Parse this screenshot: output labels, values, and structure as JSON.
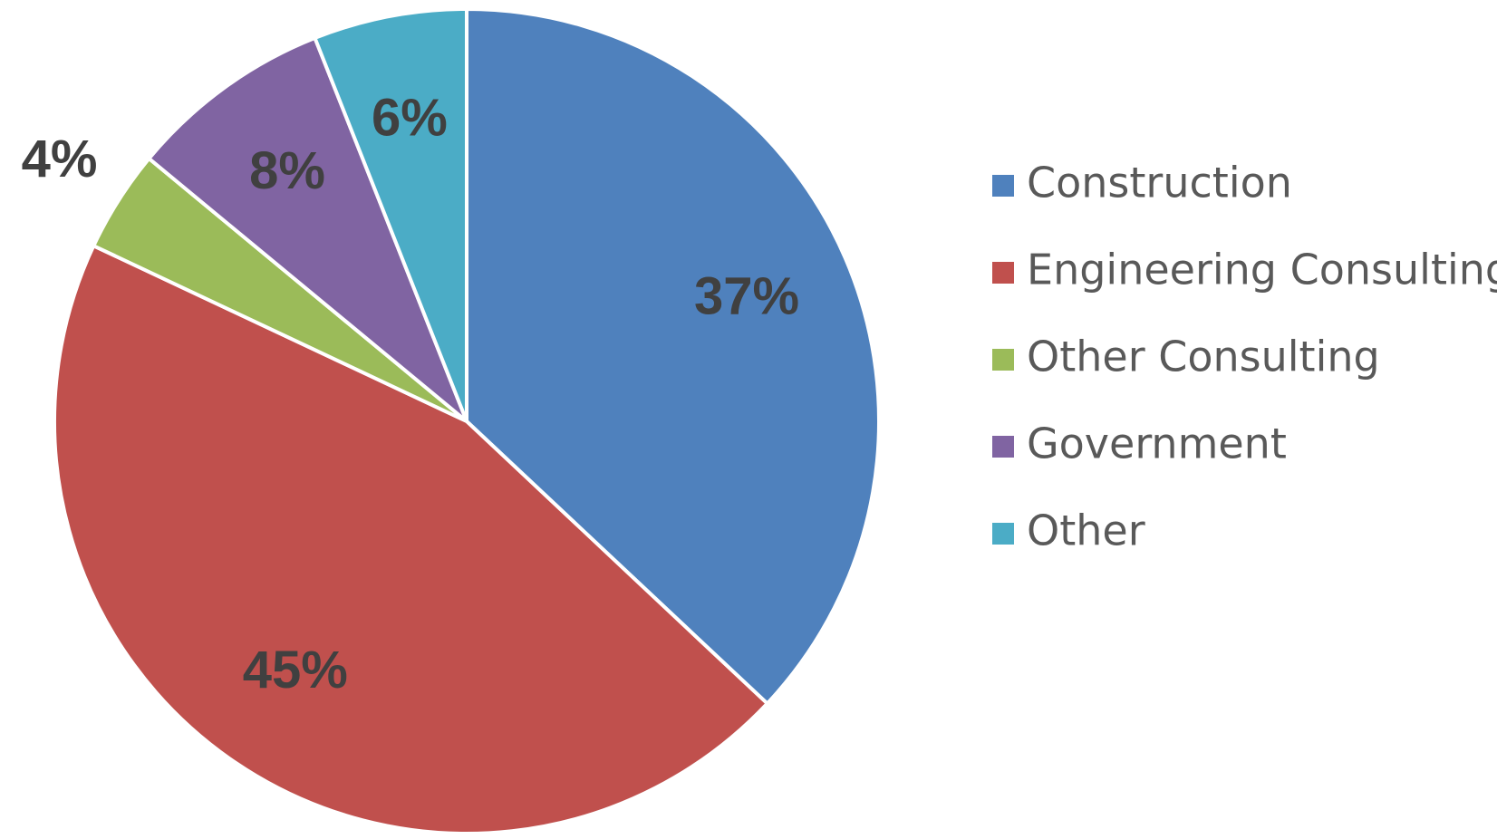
{
  "chart_data": {
    "type": "pie",
    "categories": [
      "Construction",
      "Engineering Consulting",
      "Other Consulting",
      "Government",
      "Other"
    ],
    "values": [
      37,
      45,
      4,
      8,
      6
    ],
    "value_labels": [
      "37%",
      "45%",
      "4%",
      "8%",
      "6%"
    ],
    "colors": [
      "#4f81bd",
      "#c0504d",
      "#9bbb59",
      "#8064a2",
      "#4bacc6"
    ],
    "legend": "right"
  }
}
